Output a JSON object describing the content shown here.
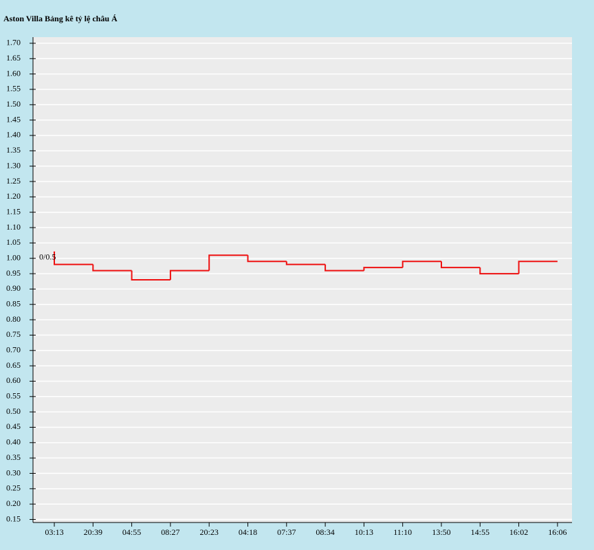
{
  "chart_data": {
    "type": "step",
    "title": "Aston Villa Bảng kê tỷ lệ châu Á",
    "annotation": "0/0.5",
    "categories": [
      "03:13",
      "20:39",
      "04:55",
      "08:27",
      "20:23",
      "04:18",
      "07:37",
      "08:34",
      "10:13",
      "11:10",
      "13:50",
      "14:55",
      "16:02",
      "16:06"
    ],
    "series": [
      {
        "color": "#ee1111",
        "values": [
          1.02,
          0.98,
          0.96,
          0.93,
          0.96,
          1.01,
          0.99,
          0.98,
          0.96,
          0.97,
          0.99,
          0.97,
          0.95,
          0.99
        ]
      }
    ],
    "ylim": [
      0.14,
      1.72
    ],
    "yticks": [
      0.15,
      {
        "value": 0.2,
        "label": "0.20"
      },
      0.25,
      {
        "value": 0.3,
        "label": "0.30"
      },
      0.35,
      {
        "value": 0.4,
        "label": "0.40"
      },
      0.45,
      {
        "value": 0.5,
        "label": "0.50"
      },
      0.55,
      {
        "value": 0.6,
        "label": "0.60"
      },
      0.65,
      {
        "value": 0.7,
        "label": "0.70"
      },
      0.75,
      {
        "value": 0.8,
        "label": "0.80"
      },
      0.85,
      {
        "value": 0.9,
        "label": "0.90"
      },
      0.95,
      {
        "value": 1,
        "label": "1.00"
      },
      1.05,
      {
        "value": 1.1,
        "label": "1.10"
      },
      1.15,
      {
        "value": 1.2,
        "label": "1.20"
      },
      1.25,
      {
        "value": 1.3,
        "label": "1.30"
      },
      1.35,
      {
        "value": 1.4,
        "label": "1.40"
      },
      1.45,
      {
        "value": 1.5,
        "label": "1.50"
      },
      1.55,
      {
        "value": 1.6,
        "label": "1.60"
      },
      1.65,
      {
        "value": 1.7,
        "label": "1.70"
      }
    ],
    "grid": true
  }
}
